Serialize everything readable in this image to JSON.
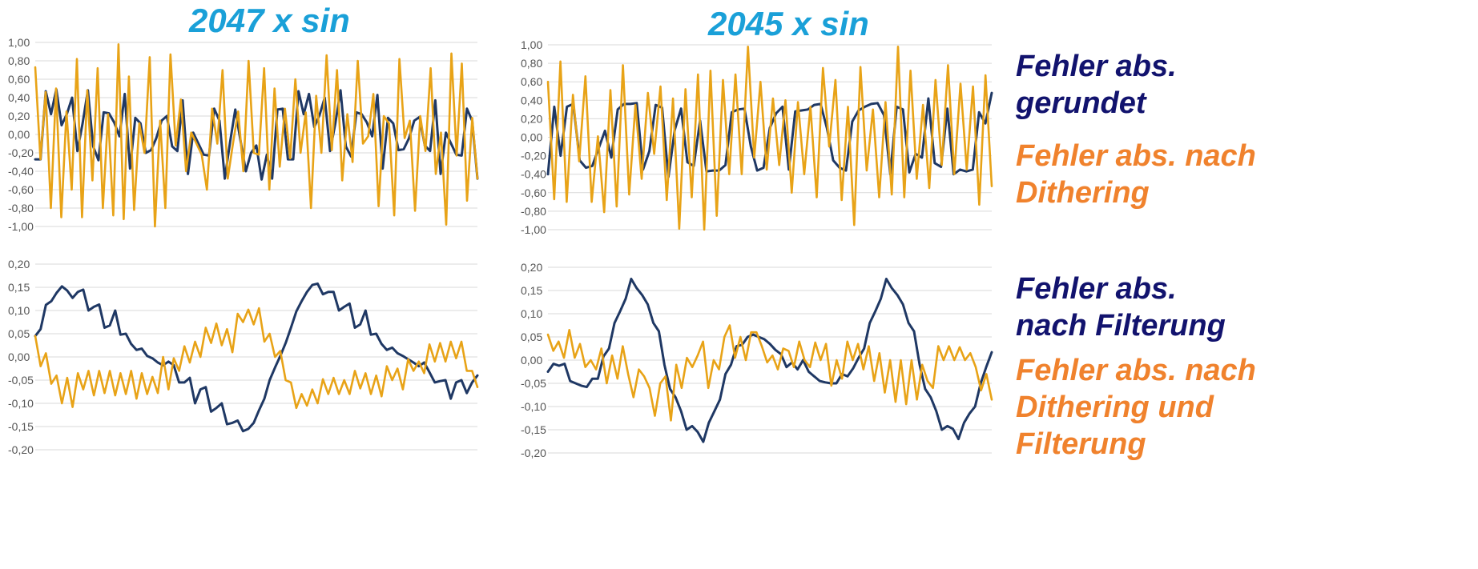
{
  "titles": {
    "left": "2047 x sin",
    "right": "2045 x sin"
  },
  "legend": {
    "top_navy": [
      "Fehler abs.",
      "gerundet"
    ],
    "top_orange": [
      "Fehler abs. nach",
      "Dithering"
    ],
    "bottom_navy": [
      "Fehler abs.",
      "nach Filterung"
    ],
    "bottom_orange": [
      "Fehler abs. nach",
      "Dithering und",
      "Filterung"
    ]
  },
  "colors": {
    "navy_series": "#1f3864",
    "orange_series": "#e8a317",
    "title": "#1aa0d8",
    "legend_navy": "#12136e",
    "legend_orange": "#f0822d",
    "grid": "#d9d9d9"
  },
  "chart_data": [
    {
      "type": "line",
      "title": "2047 x sin",
      "ylim": [
        -1.0,
        1.0
      ],
      "yticks": [
        "1,00",
        "0,80",
        "0,60",
        "0,40",
        "0,20",
        "0,00",
        "-0,20",
        "-0,40",
        "-0,60",
        "-0,80",
        "-1,00"
      ],
      "grid": true,
      "series": [
        {
          "name": "Fehler abs. gerundet",
          "color": "#1f3864",
          "values": [
            -0.27,
            -0.27,
            0.47,
            0.22,
            0.49,
            0.1,
            0.22,
            0.4,
            -0.18,
            0.12,
            0.48,
            -0.13,
            -0.28,
            0.24,
            0.23,
            0.13,
            -0.02,
            0.44,
            -0.37,
            0.18,
            0.12,
            -0.2,
            -0.17,
            -0.04,
            0.15,
            0.2,
            -0.13,
            -0.18,
            0.37,
            -0.43,
            0.02,
            -0.1,
            -0.22,
            -0.23,
            0.28,
            0.15,
            -0.48,
            -0.09,
            0.27,
            -0.07,
            -0.4,
            -0.2,
            -0.12,
            -0.49,
            -0.22,
            -0.48,
            0.27,
            0.28,
            -0.27,
            -0.27,
            0.47,
            0.22,
            0.44,
            0.08,
            0.21,
            0.4,
            -0.18,
            0.12,
            0.48,
            -0.13,
            -0.24,
            0.24,
            0.22,
            0.13,
            -0.02,
            0.43,
            -0.37,
            0.18,
            0.12,
            -0.17,
            -0.16,
            -0.04,
            0.15,
            0.19,
            -0.12,
            -0.18,
            0.37,
            -0.43,
            0.02,
            -0.1,
            -0.22,
            -0.23,
            0.28,
            0.15,
            -0.48
          ]
        },
        {
          "name": "Fehler abs. nach Dithering",
          "color": "#e8a317",
          "values": [
            0.73,
            -0.27,
            0.46,
            -0.8,
            0.5,
            -0.9,
            0.25,
            -0.6,
            0.82,
            -0.9,
            0.48,
            -0.5,
            0.72,
            -0.8,
            0.22,
            -0.88,
            0.98,
            -0.92,
            0.63,
            -0.82,
            0.12,
            -0.2,
            0.84,
            -1.0,
            0.15,
            -0.8,
            0.87,
            -0.12,
            0.38,
            -0.4,
            0.02,
            -0.1,
            -0.22,
            -0.6,
            0.28,
            -0.1,
            0.7,
            -0.48,
            -0.1,
            0.25,
            -0.4,
            0.8,
            -0.2,
            -0.22,
            0.72,
            -0.6,
            0.5,
            -0.35,
            0.28,
            -0.26,
            0.6,
            -0.2,
            0.24,
            -0.8,
            0.42,
            -0.2,
            0.86,
            -0.17,
            0.7,
            -0.5,
            0.22,
            -0.3,
            0.8,
            -0.1,
            -0.02,
            0.44,
            -0.78,
            0.2,
            0.12,
            -0.88,
            0.82,
            -0.04,
            0.15,
            -0.83,
            0.2,
            -0.18,
            0.72,
            -0.43,
            0.02,
            -0.98,
            0.88,
            -0.23,
            0.77,
            -0.72,
            0.18,
            -0.48
          ]
        }
      ]
    },
    {
      "type": "line",
      "title": "2045 x sin",
      "ylim": [
        -1.0,
        1.0
      ],
      "yticks": [
        "1,00",
        "0,80",
        "0,60",
        "0,40",
        "0,20",
        "0,00",
        "-0,20",
        "-0,40",
        "-0,60",
        "-0,80",
        "-1,00"
      ],
      "grid": true,
      "series": [
        {
          "name": "Fehler abs. gerundet",
          "color": "#1f3864",
          "values": [
            -0.4,
            0.33,
            -0.2,
            0.33,
            0.36,
            -0.25,
            -0.33,
            -0.31,
            -0.12,
            0.07,
            -0.22,
            0.3,
            0.36,
            0.36,
            0.37,
            -0.35,
            -0.15,
            0.35,
            0.32,
            -0.43,
            0.08,
            0.31,
            -0.27,
            -0.31,
            0.18,
            -0.37,
            -0.36,
            -0.36,
            -0.3,
            0.27,
            0.3,
            0.31,
            -0.1,
            -0.36,
            -0.33,
            0.1,
            0.26,
            0.33,
            -0.35,
            0.28,
            0.29,
            0.3,
            0.35,
            0.36,
            0.1,
            -0.25,
            -0.33,
            -0.36,
            0.17,
            0.29,
            0.33,
            0.36,
            0.37,
            0.24,
            -0.4,
            0.33,
            0.3,
            -0.38,
            -0.18,
            -0.22,
            0.42,
            -0.28,
            -0.32,
            0.31,
            -0.4,
            -0.35,
            -0.37,
            -0.35,
            0.27,
            0.15,
            0.48
          ]
        },
        {
          "name": "Fehler abs. nach Dithering",
          "color": "#e8a317",
          "values": [
            0.6,
            -0.67,
            0.82,
            -0.7,
            0.46,
            -0.26,
            0.66,
            -0.7,
            0.01,
            -0.81,
            0.51,
            -0.75,
            0.78,
            -0.62,
            0.35,
            -0.45,
            0.48,
            -0.18,
            0.55,
            -0.68,
            0.42,
            -0.99,
            0.52,
            -0.65,
            0.68,
            -1.0,
            0.72,
            -0.85,
            0.62,
            -0.4,
            0.68,
            -0.4,
            0.98,
            -0.22,
            0.6,
            -0.35,
            0.42,
            -0.3,
            0.4,
            -0.6,
            0.38,
            -0.4,
            0.33,
            -0.65,
            0.75,
            -0.1,
            0.62,
            -0.68,
            0.33,
            -0.95,
            0.76,
            -0.36,
            0.3,
            -0.65,
            0.38,
            -0.62,
            0.98,
            -0.65,
            0.72,
            -0.45,
            0.35,
            -0.55,
            0.62,
            -0.3,
            0.78,
            -0.4,
            0.58,
            -0.35,
            0.55,
            -0.73,
            0.67,
            -0.53
          ]
        }
      ]
    },
    {
      "type": "line",
      "title": "",
      "ylim": [
        -0.2,
        0.2
      ],
      "yticks": [
        "0,20",
        "0,15",
        "0,10",
        "0,05",
        "0,00",
        "-0,05",
        "-0,10",
        "-0,15",
        "-0,20"
      ],
      "grid": true,
      "series": [
        {
          "name": "Fehler abs. nach Filterung",
          "color": "#1f3864",
          "values": [
            0.045,
            0.06,
            0.112,
            0.12,
            0.138,
            0.152,
            0.143,
            0.127,
            0.14,
            0.145,
            0.1,
            0.108,
            0.113,
            0.063,
            0.068,
            0.1,
            0.048,
            0.05,
            0.028,
            0.015,
            0.018,
            0.002,
            -0.003,
            -0.012,
            -0.018,
            -0.01,
            -0.018,
            -0.055,
            -0.055,
            -0.045,
            -0.1,
            -0.07,
            -0.065,
            -0.118,
            -0.11,
            -0.1,
            -0.145,
            -0.142,
            -0.137,
            -0.16,
            -0.155,
            -0.142,
            -0.115,
            -0.09,
            -0.05,
            -0.023,
            0.002,
            0.03,
            0.063,
            0.098,
            0.12,
            0.14,
            0.155,
            0.158,
            0.135,
            0.14,
            0.14,
            0.1,
            0.108,
            0.115,
            0.063,
            0.07,
            0.1,
            0.048,
            0.05,
            0.028,
            0.015,
            0.02,
            0.008,
            0.002,
            -0.005,
            -0.012,
            -0.02,
            -0.012,
            -0.033,
            -0.055,
            -0.052,
            -0.05,
            -0.09,
            -0.055,
            -0.05,
            -0.078,
            -0.055,
            -0.04
          ]
        },
        {
          "name": "Fehler abs. nach Dithering und Filterung",
          "color": "#e8a317",
          "values": [
            0.045,
            -0.02,
            0.008,
            -0.058,
            -0.04,
            -0.1,
            -0.045,
            -0.108,
            -0.035,
            -0.07,
            -0.03,
            -0.083,
            -0.03,
            -0.078,
            -0.03,
            -0.083,
            -0.035,
            -0.08,
            -0.03,
            -0.09,
            -0.035,
            -0.08,
            -0.043,
            -0.078,
            0.0,
            -0.07,
            -0.003,
            -0.03,
            0.023,
            -0.012,
            0.033,
            0.0,
            0.063,
            0.03,
            0.072,
            0.025,
            0.06,
            0.01,
            0.093,
            0.075,
            0.102,
            0.07,
            0.105,
            0.033,
            0.05,
            0.0,
            0.013,
            -0.05,
            -0.055,
            -0.11,
            -0.08,
            -0.105,
            -0.07,
            -0.1,
            -0.048,
            -0.08,
            -0.045,
            -0.08,
            -0.05,
            -0.08,
            -0.03,
            -0.068,
            -0.035,
            -0.08,
            -0.04,
            -0.085,
            -0.02,
            -0.05,
            -0.025,
            -0.07,
            -0.005,
            -0.03,
            -0.01,
            -0.035,
            0.027,
            -0.01,
            0.03,
            -0.01,
            0.033,
            -0.003,
            0.033,
            -0.03,
            -0.03,
            -0.065
          ]
        }
      ]
    },
    {
      "type": "line",
      "title": "",
      "ylim": [
        -0.2,
        0.2
      ],
      "yticks": [
        "0,20",
        "0,15",
        "0,10",
        "0,05",
        "0,00",
        "-0,05",
        "-0,10",
        "-0,15",
        "-0,20"
      ],
      "grid": true,
      "series": [
        {
          "name": "Fehler abs. nach Filterung",
          "color": "#1f3864",
          "values": [
            -0.025,
            -0.008,
            -0.012,
            -0.008,
            -0.045,
            -0.05,
            -0.055,
            -0.058,
            -0.04,
            -0.04,
            0.008,
            0.025,
            0.08,
            0.105,
            0.132,
            0.175,
            0.155,
            0.14,
            0.12,
            0.08,
            0.062,
            -0.01,
            -0.062,
            -0.08,
            -0.11,
            -0.15,
            -0.142,
            -0.155,
            -0.176,
            -0.135,
            -0.11,
            -0.085,
            -0.03,
            -0.01,
            0.03,
            0.033,
            0.05,
            0.055,
            0.05,
            0.045,
            0.035,
            0.022,
            0.013,
            -0.015,
            -0.005,
            -0.02,
            0.0,
            -0.025,
            -0.035,
            -0.045,
            -0.048,
            -0.05,
            -0.05,
            -0.03,
            -0.035,
            -0.018,
            0.005,
            0.025,
            0.08,
            0.105,
            0.132,
            0.175,
            0.155,
            0.14,
            0.12,
            0.08,
            0.062,
            -0.01,
            -0.062,
            -0.08,
            -0.11,
            -0.15,
            -0.142,
            -0.148,
            -0.17,
            -0.135,
            -0.115,
            -0.1,
            -0.05,
            -0.015,
            0.017
          ]
        },
        {
          "name": "Fehler abs. nach Dithering und Filterung",
          "color": "#e8a317",
          "values": [
            0.055,
            0.02,
            0.04,
            0.005,
            0.065,
            0.005,
            0.035,
            -0.015,
            0.0,
            -0.02,
            0.025,
            -0.05,
            0.01,
            -0.04,
            0.03,
            -0.03,
            -0.08,
            -0.02,
            -0.035,
            -0.06,
            -0.12,
            -0.05,
            -0.035,
            -0.13,
            -0.01,
            -0.06,
            0.005,
            -0.015,
            0.01,
            0.04,
            -0.06,
            0.0,
            -0.02,
            0.05,
            0.075,
            0.005,
            0.05,
            0.0,
            0.06,
            0.06,
            0.03,
            -0.005,
            0.01,
            -0.02,
            0.025,
            0.02,
            -0.015,
            0.04,
            0.0,
            -0.015,
            0.038,
            0.0,
            0.035,
            -0.055,
            0.0,
            -0.04,
            0.04,
            0.0,
            0.035,
            -0.02,
            0.03,
            -0.045,
            0.015,
            -0.07,
            0.0,
            -0.09,
            0.0,
            -0.095,
            0.0,
            -0.085,
            -0.01,
            -0.045,
            -0.06,
            0.03,
            0.0,
            0.03,
            0.0,
            0.028,
            0.0,
            0.015,
            -0.015,
            -0.065,
            -0.03,
            -0.085
          ]
        }
      ]
    }
  ]
}
